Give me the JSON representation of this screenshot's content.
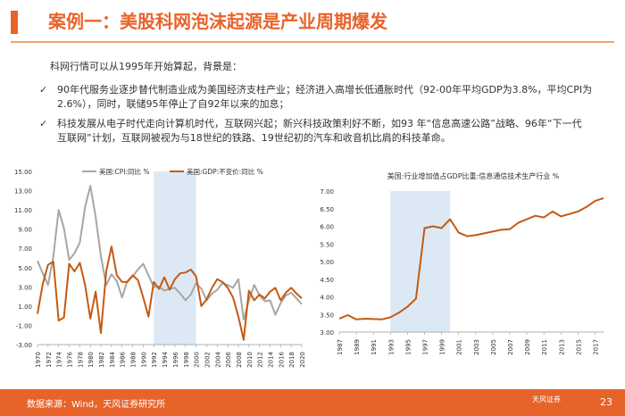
{
  "header": {
    "title": "案例一：美股科网泡沫起源是产业周期爆发"
  },
  "intro": "科网行情可以从1995年开始算起，背景是：",
  "bullets": [
    {
      "line1": "90年代服务业逐步替代制造业成为美国经济支柱产业；经济进入高增长低通胀时代（92-00年平均GDP为3.8%，平均CPI为",
      "line2": "2.6%），同时，联储95年停止了自92年以来的加息；"
    },
    {
      "line1": "科技发展从电子时代走向计算机时代，互联网兴起；新兴科技政策利好不断，如93 年“信息高速公路”战略、96年“下一代",
      "line2": "互联网”计划，互联网被视为与18世纪的铁路、19世纪初的汽车和收音机比肩的科技革命。"
    }
  ],
  "footer": {
    "source": "数据来源：Wind，天风证券研究所",
    "logo": "天风证券",
    "page": "23"
  },
  "colors": {
    "accent": "#e8632a",
    "cpi": "#a6a6a6",
    "gdp": "#c55a11",
    "line": "#c55a11",
    "highlight": "#dce9f5"
  },
  "chart_data": [
    {
      "type": "line",
      "title": "",
      "legend": [
        "美国:CPI:同比 %",
        "美国:GDP:不变价:同比 %"
      ],
      "ylim": [
        -3.0,
        15.0
      ],
      "yticks": [
        "15.00",
        "13.00",
        "11.00",
        "9.00",
        "7.00",
        "5.00",
        "3.00",
        "1.00",
        "-1.00",
        "-3.00"
      ],
      "xticks": [
        "1970",
        "1972",
        "1974",
        "1976",
        "1978",
        "1980",
        "1982",
        "1984",
        "1986",
        "1988",
        "1990",
        "1992",
        "1994",
        "1996",
        "1998",
        "2000",
        "2002",
        "2004",
        "2006",
        "2008",
        "2010",
        "2012",
        "2014",
        "2016",
        "2018",
        "2020"
      ],
      "highlight": [
        1992,
        2000
      ],
      "x": [
        1970,
        1971,
        1972,
        1973,
        1974,
        1975,
        1976,
        1977,
        1978,
        1979,
        1980,
        1981,
        1982,
        1983,
        1984,
        1985,
        1986,
        1987,
        1988,
        1989,
        1990,
        1991,
        1992,
        1993,
        1994,
        1995,
        1996,
        1997,
        1998,
        1999,
        2000,
        2001,
        2002,
        2003,
        2004,
        2005,
        2006,
        2007,
        2008,
        2009,
        2010,
        2011,
        2012,
        2013,
        2014,
        2015,
        2016,
        2017,
        2018,
        2019,
        2020
      ],
      "series": [
        {
          "name": "美国:CPI:同比 %",
          "values": [
            5.7,
            4.4,
            3.2,
            6.2,
            11.0,
            9.1,
            5.8,
            6.5,
            7.6,
            11.3,
            13.5,
            10.3,
            6.2,
            3.2,
            4.3,
            3.6,
            1.9,
            3.6,
            4.1,
            4.8,
            5.4,
            4.2,
            3.0,
            3.0,
            2.6,
            2.8,
            2.9,
            2.3,
            1.6,
            2.2,
            3.4,
            2.8,
            1.6,
            2.3,
            2.7,
            3.4,
            3.2,
            2.9,
            3.8,
            -0.4,
            1.6,
            3.2,
            2.1,
            1.5,
            1.6,
            0.1,
            1.3,
            2.1,
            2.4,
            1.8,
            1.2
          ]
        },
        {
          "name": "美国:GDP:不变价:同比 %",
          "values": [
            0.2,
            3.3,
            5.3,
            5.6,
            -0.5,
            -0.2,
            5.4,
            4.6,
            5.5,
            3.2,
            -0.3,
            2.5,
            -1.8,
            4.6,
            7.2,
            4.2,
            3.5,
            3.5,
            4.2,
            3.7,
            1.9,
            -0.1,
            3.5,
            2.8,
            4.0,
            2.7,
            3.8,
            4.4,
            4.5,
            4.8,
            4.1,
            1.0,
            1.7,
            2.9,
            3.8,
            3.5,
            2.9,
            1.9,
            -0.1,
            -2.5,
            2.6,
            1.6,
            2.2,
            1.8,
            2.5,
            2.9,
            1.6,
            2.4,
            2.9,
            2.3,
            1.8
          ]
        }
      ]
    },
    {
      "type": "line",
      "title": "美国:行业增加值占GDP比重:信息通信技术生产行业 %",
      "ylim": [
        3.0,
        7.0
      ],
      "yticks": [
        "7.00",
        "6.50",
        "6.00",
        "5.50",
        "5.00",
        "4.50",
        "4.00",
        "3.50",
        "3.00"
      ],
      "xticks": [
        "1987",
        "1989",
        "1991",
        "1993",
        "1995",
        "1997",
        "1999",
        "2001",
        "2003",
        "2005",
        "2007",
        "2009",
        "2011",
        "2013",
        "2015",
        "2017"
      ],
      "highlight": [
        1993,
        2000
      ],
      "x": [
        1987,
        1988,
        1989,
        1990,
        1991,
        1992,
        1993,
        1994,
        1995,
        1996,
        1997,
        1998,
        1999,
        2000,
        2001,
        2002,
        2003,
        2004,
        2005,
        2006,
        2007,
        2008,
        2009,
        2010,
        2011,
        2012,
        2013,
        2014,
        2015,
        2016,
        2017,
        2018
      ],
      "series": [
        {
          "name": "美国:行业增加值占GDP比重:信息通信技术生产行业 %",
          "values": [
            3.38,
            3.48,
            3.36,
            3.38,
            3.37,
            3.36,
            3.42,
            3.55,
            3.72,
            3.95,
            5.95,
            6.0,
            5.95,
            6.2,
            5.82,
            5.72,
            5.75,
            5.8,
            5.85,
            5.9,
            5.92,
            6.1,
            6.2,
            6.3,
            6.25,
            6.42,
            6.28,
            6.35,
            6.42,
            6.55,
            6.72,
            6.8
          ]
        }
      ]
    }
  ]
}
